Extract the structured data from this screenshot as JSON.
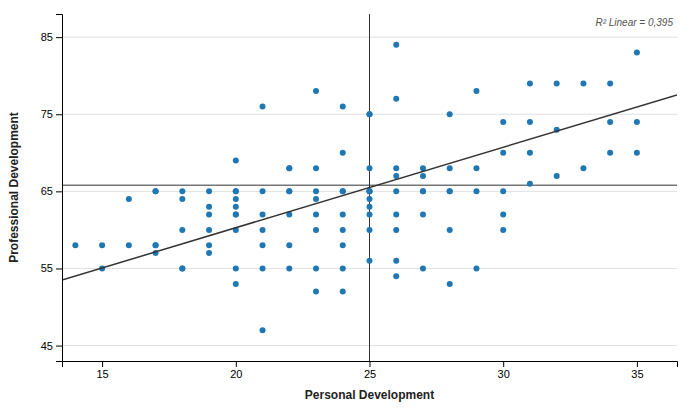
{
  "chart_data": {
    "type": "scatter",
    "xlabel": "Personal Development",
    "ylabel": "Professional Development",
    "annotation": "R² Linear = 0,395",
    "xlim": [
      13.5,
      36.5
    ],
    "ylim": [
      43,
      88
    ],
    "xticks": [
      15,
      20,
      25,
      30,
      35
    ],
    "yticks": [
      45,
      55,
      65,
      75,
      85
    ],
    "grid": true,
    "hline": 65.8,
    "vline": 25.0,
    "series": [
      {
        "type": "scatter",
        "marker": "circle",
        "x": [
          14,
          15,
          15,
          16,
          16,
          17,
          17,
          17,
          17,
          17,
          18,
          18,
          18,
          18,
          18,
          19,
          19,
          19,
          19,
          19,
          19,
          20,
          20,
          20,
          20,
          20,
          20,
          20,
          20,
          20,
          20,
          21,
          21,
          21,
          21,
          21,
          21,
          21,
          22,
          22,
          22,
          22,
          22,
          22,
          22,
          23,
          23,
          23,
          23,
          23,
          23,
          23,
          23,
          24,
          24,
          24,
          24,
          24,
          24,
          24,
          24,
          24,
          25,
          25,
          25,
          25,
          25,
          25,
          25,
          25,
          25,
          25,
          25,
          26,
          26,
          26,
          26,
          26,
          26,
          26,
          26,
          26,
          27,
          27,
          27,
          27,
          27,
          27,
          28,
          28,
          28,
          28,
          28,
          28,
          29,
          29,
          29,
          29,
          30,
          30,
          30,
          30,
          30,
          31,
          31,
          31,
          31,
          32,
          32,
          32,
          33,
          33,
          34,
          34,
          34,
          35,
          35,
          35
        ],
        "values": [
          58,
          55,
          58,
          58,
          64,
          57,
          58,
          58,
          65,
          65,
          55,
          60,
          55,
          64,
          65,
          57,
          58,
          60,
          62,
          63,
          65,
          53,
          55,
          60,
          62,
          62,
          63,
          64,
          65,
          65,
          69,
          47,
          55,
          58,
          60,
          62,
          65,
          76,
          55,
          58,
          62,
          65,
          65,
          68,
          68,
          52,
          55,
          60,
          62,
          64,
          65,
          68,
          78,
          52,
          55,
          58,
          60,
          62,
          65,
          65,
          70,
          76,
          56,
          60,
          62,
          63,
          64,
          65,
          65,
          65,
          68,
          75,
          75,
          54,
          56,
          60,
          62,
          65,
          67,
          68,
          77,
          84,
          55,
          62,
          65,
          65,
          67,
          68,
          53,
          60,
          65,
          65,
          68,
          75,
          55,
          65,
          68,
          78,
          60,
          62,
          65,
          70,
          74,
          66,
          70,
          74,
          79,
          67,
          73,
          79,
          68,
          79,
          70,
          74,
          79,
          70,
          74,
          83
        ]
      },
      {
        "type": "line",
        "line_style": "solid",
        "x": [
          13.5,
          36.5
        ],
        "values": [
          53.5,
          77.5
        ]
      }
    ]
  }
}
